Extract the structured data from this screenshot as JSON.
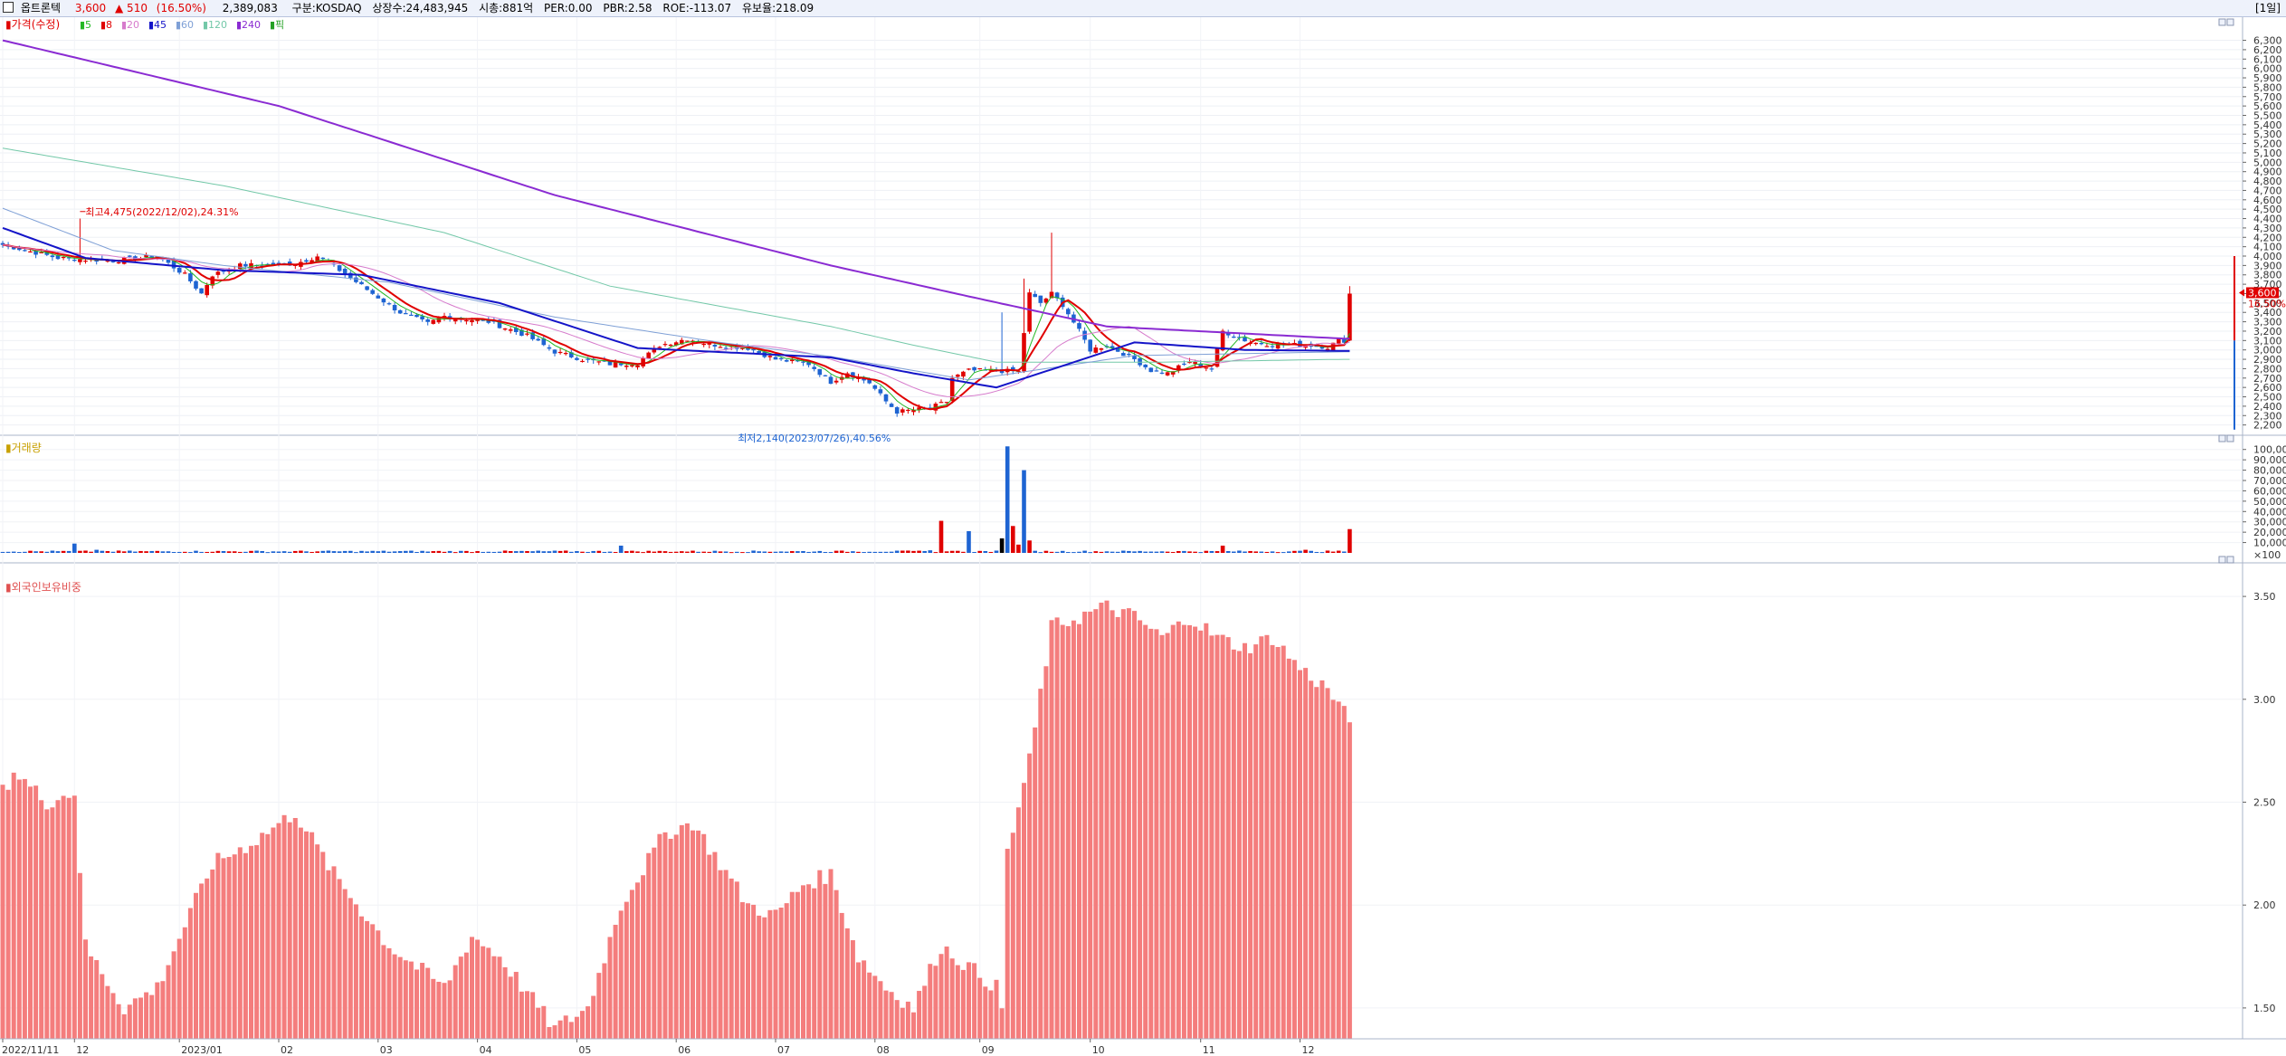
{
  "header": {
    "checkbox": "",
    "name": "옵트론텍",
    "price": "3,600",
    "change": "▲ 510",
    "change_pct": "(16.50%)",
    "volume": "2,389,083",
    "market": "구분:KOSDAQ",
    "shares": "상장수:24,483,945",
    "mcap": "시총:881억",
    "per": "PER:0.00",
    "pbr": "PBR:2.58",
    "roe": "ROE:-113.07",
    "retention": "유보율:218.09",
    "period": "[1일]"
  },
  "colors": {
    "up": "#e00000",
    "down": "#1e64d2",
    "ma5": "#23b823",
    "ma8": "#e00000",
    "ma20": "#d67bcc",
    "ma45": "#1414c8",
    "ma60": "#7fa0d6",
    "ma120": "#73c8a8",
    "ma240": "#8a2bd2",
    "foreign": "#f47d7d"
  },
  "chart_data": [
    {
      "type": "candlestick",
      "legend": {
        "price": "가격(수정)",
        "ma": [
          "5",
          "8",
          "20",
          "45",
          "60",
          "120",
          "240"
        ],
        "pointer": "픽"
      },
      "annotations": {
        "high": "최고4,475(2022/12/02),24.31%",
        "low": "최저2,140(2023/07/26),40.56%",
        "last_price": "3,600",
        "last_pct": "16.50%"
      },
      "y_ticks": [
        2200,
        2300,
        2400,
        2500,
        2600,
        2700,
        2800,
        2900,
        3000,
        3100,
        3200,
        3300,
        3400,
        3500,
        3600,
        3700,
        3800,
        3900,
        4000,
        4100,
        4200,
        4300,
        4400,
        4500,
        4600,
        4700,
        4800,
        4900,
        5000,
        5100,
        5200,
        5300,
        5400,
        5500,
        5600,
        5700,
        5800,
        5900,
        6000,
        6100,
        6200,
        6300
      ],
      "ylim": [
        2100,
        6450
      ],
      "x_ticks": [
        "2022/11/11",
        "12",
        "2023/01",
        "02",
        "03",
        "04",
        "05",
        "06",
        "07",
        "08",
        "09",
        "10",
        "11",
        "12"
      ],
      "close_keyframes": [
        [
          0,
          4120
        ],
        [
          10,
          3980
        ],
        [
          20,
          3950
        ],
        [
          28,
          4000
        ],
        [
          33,
          3800
        ],
        [
          36,
          3600
        ],
        [
          38,
          3800
        ],
        [
          43,
          3900
        ],
        [
          53,
          3920
        ],
        [
          57,
          4000
        ],
        [
          61,
          3850
        ],
        [
          67,
          3600
        ],
        [
          72,
          3400
        ],
        [
          77,
          3280
        ],
        [
          80,
          3360
        ],
        [
          88,
          3300
        ],
        [
          95,
          3150
        ],
        [
          100,
          2980
        ],
        [
          105,
          2900
        ],
        [
          110,
          2850
        ],
        [
          115,
          2860
        ],
        [
          119,
          3050
        ],
        [
          124,
          3120
        ],
        [
          128,
          3060
        ],
        [
          135,
          3020
        ],
        [
          140,
          2900
        ],
        [
          146,
          2850
        ],
        [
          150,
          2660
        ],
        [
          153,
          2760
        ],
        [
          157,
          2650
        ],
        [
          160,
          2450
        ],
        [
          162,
          2340
        ],
        [
          168,
          2380
        ],
        [
          171,
          2450
        ],
        [
          172,
          2700
        ],
        [
          175,
          2780
        ],
        [
          178,
          2780
        ],
        [
          184,
          2770
        ],
        [
          186,
          3600
        ],
        [
          188,
          3500
        ],
        [
          190,
          3600
        ],
        [
          192,
          3480
        ],
        [
          195,
          3200
        ],
        [
          197,
          3000
        ],
        [
          200,
          3050
        ],
        [
          205,
          2900
        ],
        [
          208,
          2780
        ],
        [
          211,
          2750
        ],
        [
          215,
          2880
        ],
        [
          219,
          2800
        ],
        [
          221,
          3200
        ],
        [
          226,
          3080
        ],
        [
          230,
          3060
        ],
        [
          237,
          3050
        ],
        [
          240,
          3030
        ],
        [
          242,
          3100
        ]
      ],
      "big_candles": [
        [
          14,
          3960,
          4400
        ],
        [
          185,
          3520,
          3760
        ],
        [
          190,
          3560,
          4250
        ],
        [
          181,
          2940,
          3400
        ]
      ],
      "ma_values": {
        "240": [
          [
            0,
            6300
          ],
          [
            50,
            5600
          ],
          [
            100,
            4650
          ],
          [
            150,
            3900
          ],
          [
            175,
            3570
          ],
          [
            200,
            3250
          ],
          [
            243,
            3120
          ]
        ],
        "120": [
          [
            0,
            5150
          ],
          [
            40,
            4750
          ],
          [
            80,
            4250
          ],
          [
            110,
            3680
          ],
          [
            150,
            3250
          ],
          [
            165,
            3050
          ],
          [
            180,
            2870
          ],
          [
            210,
            2870
          ],
          [
            243,
            2900
          ]
        ],
        "60": [
          [
            0,
            4510
          ],
          [
            20,
            4060
          ],
          [
            40,
            3900
          ],
          [
            70,
            3720
          ],
          [
            100,
            3350
          ],
          [
            130,
            3080
          ],
          [
            150,
            2930
          ],
          [
            175,
            2680
          ],
          [
            205,
            2940
          ],
          [
            243,
            2980
          ]
        ],
        "45": [
          [
            0,
            4300
          ],
          [
            15,
            3980
          ],
          [
            40,
            3850
          ],
          [
            65,
            3800
          ],
          [
            90,
            3500
          ],
          [
            115,
            3020
          ],
          [
            150,
            2920
          ],
          [
            165,
            2750
          ],
          [
            180,
            2600
          ],
          [
            205,
            3080
          ],
          [
            225,
            3000
          ],
          [
            243,
            2990
          ]
        ]
      }
    },
    {
      "type": "bar",
      "title": "거래량",
      "y_ticks": [
        "100,000",
        "90,000",
        "80,000",
        "70,000",
        "60,000",
        "50,000",
        "40,000",
        "30,000",
        "20,000",
        "10,000"
      ],
      "unit": "×100",
      "ylim": [
        0,
        105000
      ],
      "spikes": [
        [
          13,
          9000
        ],
        [
          17,
          3000
        ],
        [
          18,
          2000
        ],
        [
          112,
          7000
        ],
        [
          168,
          2500
        ],
        [
          170,
          31000
        ],
        [
          173,
          2000
        ],
        [
          175,
          21000
        ],
        [
          181,
          14000
        ],
        [
          182,
          103000
        ],
        [
          183,
          26000
        ],
        [
          184,
          8000
        ],
        [
          185,
          80000
        ],
        [
          186,
          12000
        ],
        [
          221,
          7000
        ],
        [
          236,
          3000
        ],
        [
          244,
          23000
        ]
      ],
      "base": 1500
    },
    {
      "type": "bar",
      "title": "외국인보유비중",
      "y_ticks": [
        "3.50",
        "3.00",
        "2.50",
        "2.00",
        "1.50"
      ],
      "ylim": [
        1.35,
        3.65
      ],
      "keyframes": [
        [
          0,
          2.55
        ],
        [
          2,
          2.65
        ],
        [
          8,
          2.5
        ],
        [
          13,
          2.55
        ],
        [
          15,
          1.8
        ],
        [
          22,
          1.5
        ],
        [
          28,
          1.6
        ],
        [
          38,
          2.2
        ],
        [
          45,
          2.3
        ],
        [
          53,
          2.45
        ],
        [
          60,
          2.15
        ],
        [
          70,
          1.8
        ],
        [
          80,
          1.6
        ],
        [
          85,
          1.85
        ],
        [
          90,
          1.75
        ],
        [
          100,
          1.4
        ],
        [
          106,
          1.5
        ],
        [
          112,
          2.0
        ],
        [
          120,
          2.35
        ],
        [
          125,
          2.4
        ],
        [
          135,
          2.0
        ],
        [
          140,
          1.95
        ],
        [
          145,
          2.1
        ],
        [
          150,
          2.15
        ],
        [
          155,
          1.75
        ],
        [
          160,
          1.6
        ],
        [
          165,
          1.5
        ],
        [
          170,
          1.8
        ],
        [
          180,
          1.6
        ],
        [
          181,
          1.5
        ],
        [
          182,
          2.25
        ],
        [
          186,
          2.7
        ],
        [
          190,
          3.35
        ],
        [
          195,
          3.4
        ],
        [
          200,
          3.45
        ],
        [
          205,
          3.4
        ],
        [
          210,
          3.3
        ],
        [
          215,
          3.4
        ],
        [
          220,
          3.3
        ],
        [
          225,
          3.25
        ],
        [
          230,
          3.3
        ],
        [
          235,
          3.15
        ],
        [
          240,
          3.05
        ],
        [
          245,
          2.85
        ]
      ]
    }
  ]
}
